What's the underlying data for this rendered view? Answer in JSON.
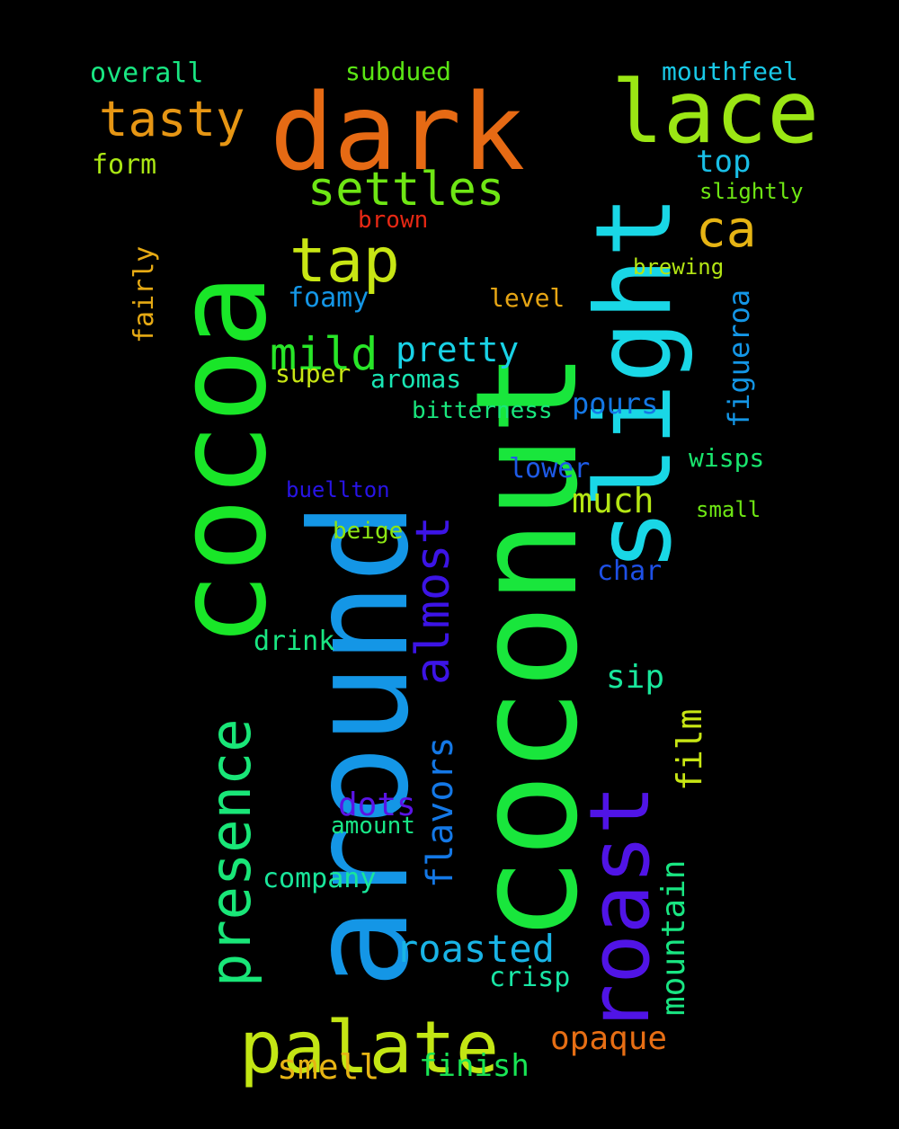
{
  "cloud": {
    "background": "#000000",
    "words": [
      {
        "key": "coconut",
        "text": "coconut",
        "color": "#19e63c",
        "rotated": true
      },
      {
        "key": "around",
        "text": "around",
        "color": "#1496e6",
        "rotated": true
      },
      {
        "key": "cocoa",
        "text": "cocoa",
        "color": "#19e628",
        "rotated": true
      },
      {
        "key": "dark",
        "text": "dark",
        "color": "#e66a14",
        "rotated": false
      },
      {
        "key": "slight",
        "text": "slight",
        "color": "#19d7e6",
        "rotated": true
      },
      {
        "key": "lace",
        "text": "lace",
        "color": "#9be614",
        "rotated": false
      },
      {
        "key": "roast",
        "text": "roast",
        "color": "#5014e6",
        "rotated": true
      },
      {
        "key": "palate",
        "text": "palate",
        "color": "#c3e614",
        "rotated": false
      },
      {
        "key": "presence",
        "text": "presence",
        "color": "#19e678",
        "rotated": true
      },
      {
        "key": "tap",
        "text": "tap",
        "color": "#c8e614",
        "rotated": false
      },
      {
        "key": "tasty",
        "text": "tasty",
        "color": "#e69614",
        "rotated": false
      },
      {
        "key": "settles",
        "text": "settles",
        "color": "#6ee614",
        "rotated": false
      },
      {
        "key": "ca",
        "text": "ca",
        "color": "#e6b414",
        "rotated": false
      },
      {
        "key": "almost",
        "text": "almost",
        "color": "#3c14e6",
        "rotated": true
      },
      {
        "key": "mild",
        "text": "mild",
        "color": "#28e628",
        "rotated": false
      },
      {
        "key": "pretty",
        "text": "pretty",
        "color": "#19d2e6",
        "rotated": false
      },
      {
        "key": "roasted",
        "text": "roasted",
        "color": "#19b4e6",
        "rotated": false
      },
      {
        "key": "flavors",
        "text": "flavors",
        "color": "#1478e6",
        "rotated": true
      },
      {
        "key": "mountain",
        "text": "mountain",
        "color": "#19e682",
        "rotated": true
      },
      {
        "key": "opaque",
        "text": "opaque",
        "color": "#e66e14",
        "rotated": false
      },
      {
        "key": "film",
        "text": "film",
        "color": "#c8e614",
        "rotated": true
      },
      {
        "key": "figueroa",
        "text": "figueroa",
        "color": "#1496e6",
        "rotated": true
      },
      {
        "key": "much",
        "text": "much",
        "color": "#b4e614",
        "rotated": false
      },
      {
        "key": "smell",
        "text": "smell",
        "color": "#e6b414",
        "rotated": false
      },
      {
        "key": "finish",
        "text": "finish",
        "color": "#19e655",
        "rotated": false
      },
      {
        "key": "dots",
        "text": "dots",
        "color": "#5a14e6",
        "rotated": false
      },
      {
        "key": "sip",
        "text": "sip",
        "color": "#19e69b",
        "rotated": false
      },
      {
        "key": "pours",
        "text": "pours",
        "color": "#1478e6",
        "rotated": false
      },
      {
        "key": "top",
        "text": "top",
        "color": "#19bee6",
        "rotated": false
      },
      {
        "key": "crisp",
        "text": "crisp",
        "color": "#19e6a5",
        "rotated": false
      },
      {
        "key": "company",
        "text": "company",
        "color": "#19e69b",
        "rotated": false
      },
      {
        "key": "drink",
        "text": "drink",
        "color": "#19e682",
        "rotated": false
      },
      {
        "key": "fairly",
        "text": "fairly",
        "color": "#e6aa14",
        "rotated": true
      },
      {
        "key": "foamy",
        "text": "foamy",
        "color": "#1496e6",
        "rotated": false
      },
      {
        "key": "overall",
        "text": "overall",
        "color": "#19e682",
        "rotated": false
      },
      {
        "key": "subdued",
        "text": "subdued",
        "color": "#5ae614",
        "rotated": false
      },
      {
        "key": "mouthfeel",
        "text": "mouthfeel",
        "color": "#19c8e6",
        "rotated": false
      },
      {
        "key": "form",
        "text": "form",
        "color": "#aae614",
        "rotated": false
      },
      {
        "key": "super",
        "text": "super",
        "color": "#c8e614",
        "rotated": false
      },
      {
        "key": "aromas",
        "text": "aromas",
        "color": "#19e6b4",
        "rotated": false
      },
      {
        "key": "bitterness",
        "text": "bitterness",
        "color": "#19e67d",
        "rotated": false
      },
      {
        "key": "lower",
        "text": "lower",
        "color": "#1e5ae6",
        "rotated": false
      },
      {
        "key": "wisps",
        "text": "wisps",
        "color": "#19e66e",
        "rotated": false
      },
      {
        "key": "char",
        "text": "char",
        "color": "#1e50e6",
        "rotated": false
      },
      {
        "key": "level",
        "text": "level",
        "color": "#e6a514",
        "rotated": false
      },
      {
        "key": "brown",
        "text": "brown",
        "color": "#e62814",
        "rotated": false
      },
      {
        "key": "slightly",
        "text": "slightly",
        "color": "#6ee614",
        "rotated": false
      },
      {
        "key": "brewing",
        "text": "brewing",
        "color": "#b4e614",
        "rotated": false
      },
      {
        "key": "beige",
        "text": "beige",
        "color": "#8ce614",
        "rotated": false
      },
      {
        "key": "amount",
        "text": "amount",
        "color": "#19e687",
        "rotated": false
      },
      {
        "key": "small",
        "text": "small",
        "color": "#6ee614",
        "rotated": false
      },
      {
        "key": "buellton",
        "text": "buellton",
        "color": "#2814e6",
        "rotated": false
      }
    ]
  }
}
